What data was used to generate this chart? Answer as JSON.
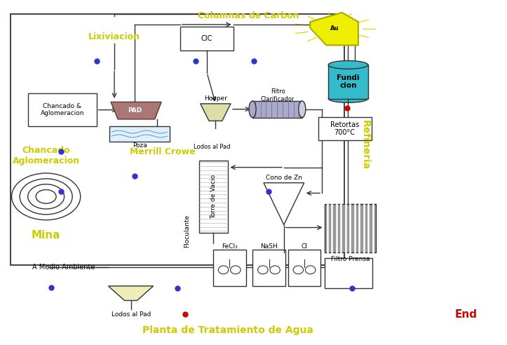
{
  "bg_color": "#ffffff",
  "labels": {
    "lixiviacion": "Lixiviacion",
    "columnas": "Columnas de Carbon",
    "chancado_title": "Chancado\nAglomeracion",
    "chancado_box": "Chancado &\nAglomeracion",
    "mina": "Mina",
    "pad": "PAD",
    "cic": "CIC",
    "poza": "Poza",
    "hooper": "Hooper",
    "lodos_pad_top": "Lodos al Pad",
    "filtro_clar": "Filtro\nClarificador",
    "merrill_crowe": "Merrill Crowe",
    "torre_vacio": "Torre de Vacio",
    "cono_zn": "Cono de Zn",
    "flocul": "Floculante",
    "fecl3": "FeCl₃",
    "nash": "NaSH",
    "cl": "Cl",
    "filtro_prensa": "Filtro Prensa",
    "a_medio_amb": "A Medio Ambiente",
    "lodos_pad_bot": "Lodos al Pad",
    "planta": "Planta de Tratamiento de Agua",
    "fundi": "Fundi\ncion",
    "retortas": "Retortas\n700°C",
    "refineria": "Refineria",
    "end": "End"
  },
  "yellow_label": "#cccc00",
  "blue_dot": "#3333cc",
  "red_dot": "#cc0000",
  "red_end": "#cc0000",
  "pad_fill": "#aa7777",
  "hooper_fill": "#ddddaa",
  "filtro_fill": "#aaaacc",
  "fundi_fill": "#33bbcc",
  "filtro_prensa_fill": "#999999",
  "yellow_box": "#eeeebb",
  "gold_shape": "#eeee00",
  "line_color": "#333333",
  "refineria_label": "#cccc00",
  "mina_label": "#cccc00"
}
